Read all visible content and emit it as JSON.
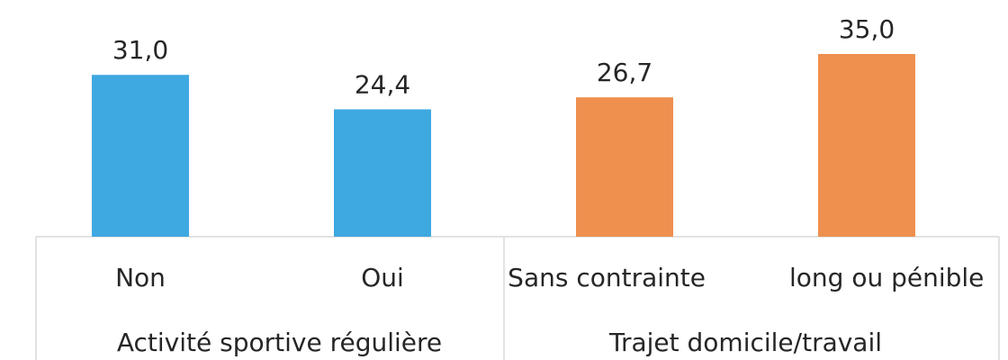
{
  "chart_data": {
    "type": "bar",
    "categories": [
      "Non",
      "Oui",
      "Sans contrainte",
      "long ou pénible"
    ],
    "groups": [
      "Activité sportive régulière",
      "Trajet domicile/travail"
    ],
    "values": [
      31.0,
      24.4,
      26.7,
      35.0
    ],
    "value_labels": [
      "31,0",
      "24,4",
      "26,7",
      "35,0"
    ],
    "colors": [
      "#3ea8e0",
      "#3ea8e0",
      "#ef904f",
      "#ef904f"
    ],
    "ylim": [
      0,
      45
    ]
  }
}
